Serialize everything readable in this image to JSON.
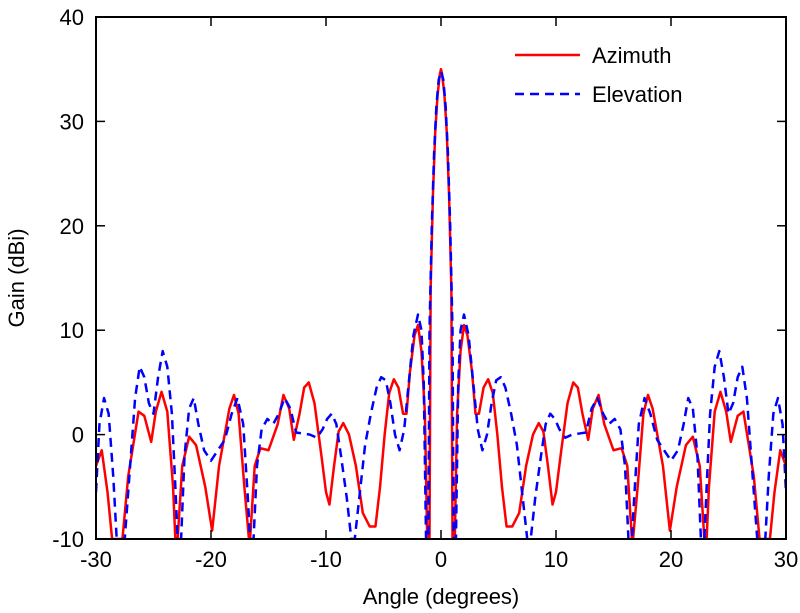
{
  "chart_data": {
    "type": "line",
    "title": "",
    "xlabel": "Angle  (degrees)",
    "ylabel": "Gain (dBi)",
    "xlim": [
      -30,
      30
    ],
    "ylim": [
      -10,
      40
    ],
    "grid": false,
    "legend_position": "top-right",
    "x_ticks": [
      -30,
      -20,
      -10,
      0,
      10,
      20,
      30
    ],
    "x_tick_labels": [
      "-30",
      "-20",
      "-10",
      "0",
      "10",
      "20",
      "30"
    ],
    "y_ticks": [
      -10,
      0,
      10,
      20,
      30,
      40
    ],
    "y_tick_labels": [
      "-10",
      "0",
      "10",
      "20",
      "30",
      "40"
    ],
    "series": [
      {
        "name": "Azimuth",
        "color": "#ff0000",
        "style": "solid",
        "points": [
          [
            -30,
            -3
          ],
          [
            -29.5,
            -1.5
          ],
          [
            -29.0,
            -5.5
          ],
          [
            -28.6,
            -10
          ],
          [
            -27.7,
            -10
          ],
          [
            -27.2,
            -4
          ],
          [
            -26.3,
            2.2
          ],
          [
            -25.8,
            1.8
          ],
          [
            -25.2,
            -0.7
          ],
          [
            -24.8,
            2.2
          ],
          [
            -24.3,
            4.1
          ],
          [
            -23.8,
            2.2
          ],
          [
            -23.3,
            -5
          ],
          [
            -23.1,
            -10
          ],
          [
            -22.9,
            -10
          ],
          [
            -22.5,
            -3
          ],
          [
            -21.9,
            -0.2
          ],
          [
            -21.3,
            -1
          ],
          [
            -20.5,
            -5
          ],
          [
            -19.9,
            -9.2
          ],
          [
            -19.3,
            -3
          ],
          [
            -18.4,
            2.5
          ],
          [
            -18.0,
            3.8
          ],
          [
            -17.6,
            2
          ],
          [
            -17.1,
            -5
          ],
          [
            -16.7,
            -10
          ],
          [
            -16.6,
            -10
          ],
          [
            -16.2,
            -3
          ],
          [
            -15.7,
            -1.3
          ],
          [
            -15.0,
            -1.5
          ],
          [
            -14.2,
            1
          ],
          [
            -13.7,
            3.8
          ],
          [
            -13.2,
            2.5
          ],
          [
            -12.8,
            -0.5
          ],
          [
            -12.3,
            2
          ],
          [
            -11.9,
            4.5
          ],
          [
            -11.5,
            5
          ],
          [
            -11.0,
            3
          ],
          [
            -10.4,
            -2
          ],
          [
            -10.0,
            -5.5
          ],
          [
            -9.7,
            -6.7
          ],
          [
            -9.3,
            -3
          ],
          [
            -8.9,
            0.3
          ],
          [
            -8.5,
            1.1
          ],
          [
            -8.0,
            0
          ],
          [
            -7.4,
            -3
          ],
          [
            -6.8,
            -7.5
          ],
          [
            -6.2,
            -8.8
          ],
          [
            -5.7,
            -8.8
          ],
          [
            -5.3,
            -5
          ],
          [
            -4.9,
            0
          ],
          [
            -4.5,
            4
          ],
          [
            -4.1,
            5.3
          ],
          [
            -3.7,
            4.5
          ],
          [
            -3.3,
            2
          ],
          [
            -3.0,
            2
          ],
          [
            -2.7,
            6
          ],
          [
            -2.3,
            9.5
          ],
          [
            -2.0,
            10.5
          ],
          [
            -1.7,
            8
          ],
          [
            -1.4,
            2
          ],
          [
            -1.2,
            -10
          ],
          [
            -1.0,
            -10
          ],
          [
            -0.9,
            14
          ],
          [
            -0.7,
            23
          ],
          [
            -0.5,
            29
          ],
          [
            -0.3,
            32.5
          ],
          [
            -0.1,
            34.5
          ],
          [
            0,
            35
          ],
          [
            0.1,
            34.5
          ],
          [
            0.3,
            32.5
          ],
          [
            0.5,
            29
          ],
          [
            0.7,
            23
          ],
          [
            0.9,
            14
          ],
          [
            1.0,
            -10
          ],
          [
            1.2,
            -10
          ],
          [
            1.4,
            2
          ],
          [
            1.7,
            8
          ],
          [
            2.0,
            10.5
          ],
          [
            2.3,
            9.5
          ],
          [
            2.7,
            6
          ],
          [
            3.0,
            2
          ],
          [
            3.3,
            2
          ],
          [
            3.7,
            4.5
          ],
          [
            4.1,
            5.3
          ],
          [
            4.5,
            4
          ],
          [
            4.9,
            0
          ],
          [
            5.3,
            -5
          ],
          [
            5.7,
            -8.8
          ],
          [
            6.2,
            -8.8
          ],
          [
            6.8,
            -7.5
          ],
          [
            7.4,
            -3
          ],
          [
            8.0,
            0
          ],
          [
            8.5,
            1.1
          ],
          [
            8.9,
            0.3
          ],
          [
            9.3,
            -3
          ],
          [
            9.7,
            -6.7
          ],
          [
            10.0,
            -5.5
          ],
          [
            10.4,
            -2
          ],
          [
            11.0,
            3
          ],
          [
            11.5,
            5
          ],
          [
            11.9,
            4.5
          ],
          [
            12.3,
            2
          ],
          [
            12.8,
            -0.5
          ],
          [
            13.2,
            2.5
          ],
          [
            13.7,
            3.8
          ],
          [
            14.2,
            1
          ],
          [
            15.0,
            -1.5
          ],
          [
            15.7,
            -1.3
          ],
          [
            16.2,
            -3
          ],
          [
            16.6,
            -10
          ],
          [
            16.7,
            -10
          ],
          [
            17.1,
            -5
          ],
          [
            17.6,
            2
          ],
          [
            18.0,
            3.8
          ],
          [
            18.4,
            2.5
          ],
          [
            19.3,
            -3
          ],
          [
            19.9,
            -9.2
          ],
          [
            20.5,
            -5
          ],
          [
            21.3,
            -1
          ],
          [
            21.9,
            -0.2
          ],
          [
            22.5,
            -3
          ],
          [
            22.9,
            -10
          ],
          [
            23.1,
            -10
          ],
          [
            23.3,
            -5
          ],
          [
            23.8,
            2.2
          ],
          [
            24.3,
            4.1
          ],
          [
            24.8,
            2.2
          ],
          [
            25.2,
            -0.7
          ],
          [
            25.8,
            1.8
          ],
          [
            26.3,
            2.2
          ],
          [
            27.2,
            -4
          ],
          [
            27.7,
            -10
          ],
          [
            28.6,
            -10
          ],
          [
            29.0,
            -5.5
          ],
          [
            29.5,
            -1.5
          ],
          [
            30,
            -3
          ]
        ]
      },
      {
        "name": "Elevation",
        "color": "#0000ff",
        "style": "dashed",
        "points": [
          [
            -30,
            -5.5
          ],
          [
            -29.7,
            1
          ],
          [
            -29.3,
            3.5
          ],
          [
            -28.9,
            2
          ],
          [
            -28.5,
            -4
          ],
          [
            -28.2,
            -10
          ],
          [
            -27.5,
            -10
          ],
          [
            -27.1,
            -4
          ],
          [
            -26.6,
            3.5
          ],
          [
            -26.2,
            6.5
          ],
          [
            -25.8,
            5.5
          ],
          [
            -25.4,
            3
          ],
          [
            -25.0,
            2
          ],
          [
            -24.6,
            5.5
          ],
          [
            -24.2,
            8
          ],
          [
            -23.8,
            6.5
          ],
          [
            -23.4,
            2
          ],
          [
            -23.1,
            -5
          ],
          [
            -22.9,
            -10
          ],
          [
            -22.6,
            -10
          ],
          [
            -22.3,
            -2
          ],
          [
            -21.9,
            2.5
          ],
          [
            -21.5,
            3.5
          ],
          [
            -21.1,
            1
          ],
          [
            -20.6,
            -1.5
          ],
          [
            -20.0,
            -2.5
          ],
          [
            -19.4,
            -1.5
          ],
          [
            -18.8,
            -0.5
          ],
          [
            -18.2,
            2
          ],
          [
            -17.7,
            3.5
          ],
          [
            -17.2,
            1
          ],
          [
            -16.8,
            -6
          ],
          [
            -16.6,
            -10
          ],
          [
            -16.3,
            -10
          ],
          [
            -16.0,
            -3
          ],
          [
            -15.6,
            0.5
          ],
          [
            -15.1,
            1.5
          ],
          [
            -14.6,
            1
          ],
          [
            -14.1,
            2
          ],
          [
            -13.6,
            3.5
          ],
          [
            -13.1,
            2.5
          ],
          [
            -12.6,
            0.2
          ],
          [
            -12.0,
            0.1
          ],
          [
            -11.4,
            0
          ],
          [
            -10.8,
            -0.3
          ],
          [
            -10.3,
            0.5
          ],
          [
            -9.9,
            1.5
          ],
          [
            -9.5,
            2
          ],
          [
            -9.1,
            1
          ],
          [
            -8.7,
            -2
          ],
          [
            -8.2,
            -6
          ],
          [
            -7.8,
            -10
          ],
          [
            -7.5,
            -10
          ],
          [
            -7.0,
            -5
          ],
          [
            -6.6,
            -1
          ],
          [
            -6.1,
            2
          ],
          [
            -5.6,
            4.5
          ],
          [
            -5.2,
            5.5
          ],
          [
            -4.8,
            5.2
          ],
          [
            -4.4,
            3
          ],
          [
            -4.0,
            0
          ],
          [
            -3.6,
            -1.5
          ],
          [
            -3.2,
            0.5
          ],
          [
            -2.8,
            5
          ],
          [
            -2.4,
            9.5
          ],
          [
            -2.0,
            11.5
          ],
          [
            -1.7,
            10
          ],
          [
            -1.5,
            5
          ],
          [
            -1.3,
            -10
          ],
          [
            -1.1,
            -10
          ],
          [
            -1.0,
            10
          ],
          [
            -0.8,
            20
          ],
          [
            -0.6,
            27
          ],
          [
            -0.4,
            31.5
          ],
          [
            -0.2,
            34
          ],
          [
            0,
            34.8
          ],
          [
            0.2,
            34
          ],
          [
            0.4,
            31.5
          ],
          [
            0.6,
            27
          ],
          [
            0.8,
            20
          ],
          [
            1.0,
            10
          ],
          [
            1.1,
            -10
          ],
          [
            1.3,
            -10
          ],
          [
            1.5,
            5
          ],
          [
            1.7,
            10
          ],
          [
            2.0,
            11.5
          ],
          [
            2.4,
            9.5
          ],
          [
            2.8,
            5
          ],
          [
            3.2,
            0.5
          ],
          [
            3.6,
            -1.5
          ],
          [
            4.0,
            0
          ],
          [
            4.4,
            3
          ],
          [
            4.8,
            5.2
          ],
          [
            5.2,
            5.5
          ],
          [
            5.6,
            4.5
          ],
          [
            6.1,
            2
          ],
          [
            6.6,
            -1
          ],
          [
            7.0,
            -5
          ],
          [
            7.5,
            -10
          ],
          [
            7.8,
            -10
          ],
          [
            8.2,
            -6
          ],
          [
            8.7,
            -2
          ],
          [
            9.1,
            1
          ],
          [
            9.5,
            2
          ],
          [
            9.9,
            1.5
          ],
          [
            10.3,
            0.5
          ],
          [
            10.8,
            -0.3
          ],
          [
            11.4,
            0
          ],
          [
            12.0,
            0.1
          ],
          [
            12.6,
            0.2
          ],
          [
            13.1,
            2.5
          ],
          [
            13.6,
            3.5
          ],
          [
            14.1,
            2
          ],
          [
            14.6,
            1
          ],
          [
            15.1,
            1.5
          ],
          [
            15.6,
            0.5
          ],
          [
            16.0,
            -3
          ],
          [
            16.3,
            -10
          ],
          [
            16.6,
            -10
          ],
          [
            16.8,
            -6
          ],
          [
            17.2,
            1
          ],
          [
            17.7,
            3.5
          ],
          [
            18.2,
            2
          ],
          [
            18.8,
            -0.5
          ],
          [
            19.4,
            -1.5
          ],
          [
            20.0,
            -2.5
          ],
          [
            20.6,
            -1.5
          ],
          [
            21.1,
            1
          ],
          [
            21.5,
            3.5
          ],
          [
            21.9,
            2.5
          ],
          [
            22.3,
            -2
          ],
          [
            22.6,
            -10
          ],
          [
            22.9,
            -10
          ],
          [
            23.1,
            -5
          ],
          [
            23.4,
            2
          ],
          [
            23.8,
            6.5
          ],
          [
            24.2,
            8
          ],
          [
            24.6,
            5.5
          ],
          [
            25.0,
            2
          ],
          [
            25.4,
            3
          ],
          [
            25.8,
            5.5
          ],
          [
            26.2,
            6.5
          ],
          [
            26.6,
            3.5
          ],
          [
            27.1,
            -4
          ],
          [
            27.5,
            -10
          ],
          [
            28.2,
            -10
          ],
          [
            28.5,
            -4
          ],
          [
            28.9,
            2
          ],
          [
            29.3,
            3.5
          ],
          [
            29.7,
            1
          ],
          [
            30,
            -5.5
          ]
        ]
      }
    ]
  }
}
